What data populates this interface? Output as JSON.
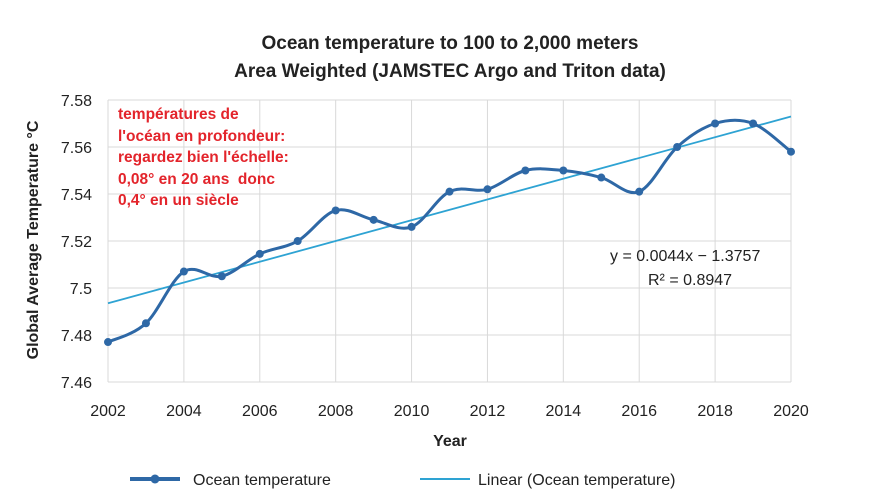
{
  "chart_data": {
    "type": "line",
    "title": [
      "Ocean temperature to 100 to 2,000 meters",
      "Area Weighted (JAMSTEC Argo and Triton data)"
    ],
    "xlabel": "Year",
    "ylabel": "Global Average Temperature °C",
    "xlim": [
      2002,
      2020
    ],
    "ylim": [
      7.46,
      7.58
    ],
    "xticks": [
      "2002",
      "2004",
      "2006",
      "2008",
      "2010",
      "2012",
      "2014",
      "2016",
      "2018",
      "2020"
    ],
    "yticks": [
      "7.46",
      "7.48",
      "7.5",
      "7.52",
      "7.54",
      "7.56",
      "7.58"
    ],
    "grid": true,
    "series": [
      {
        "name": "Ocean temperature",
        "color": "#2e68a6",
        "x": [
          2002,
          2003,
          2004,
          2005,
          2006,
          2007,
          2008,
          2009,
          2010,
          2011,
          2012,
          2013,
          2014,
          2015,
          2016,
          2017,
          2018,
          2019,
          2020
        ],
        "values": [
          7.477,
          7.485,
          7.507,
          7.505,
          7.5145,
          7.52,
          7.533,
          7.529,
          7.526,
          7.541,
          7.542,
          7.55,
          7.55,
          7.547,
          7.541,
          7.56,
          7.57,
          7.57,
          7.558
        ]
      }
    ],
    "trendline": {
      "name": "Linear (Ocean temperature)",
      "color": "#2ea3d3",
      "start": [
        2002,
        7.4935
      ],
      "end": [
        2020,
        7.573
      ],
      "equation": "y = 0.0044x − 1.3757",
      "r2": "R² = 0.8947"
    },
    "legend_position": "bottom",
    "annotation": [
      "températures de",
      "l'océan en profondeur:",
      "regardez bien l'échelle:",
      "0,08° en 20 ans  donc",
      "0,4° en un siècle"
    ]
  }
}
